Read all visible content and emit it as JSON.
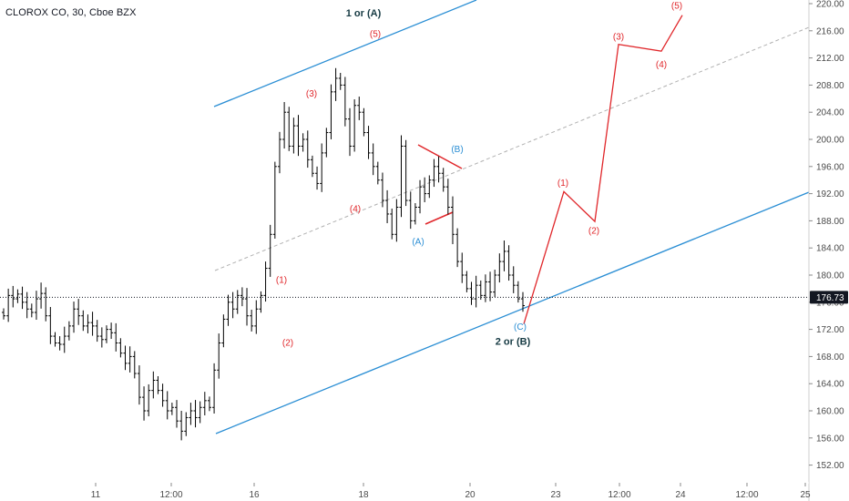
{
  "header": {
    "title": "CLOROX CO, 30, Cboe BZX"
  },
  "colors": {
    "channel": "#2a8ed4",
    "projection": "#e0262a",
    "bars": "#000000",
    "midline": "#b0b0b0",
    "last_price_tag": "#131722"
  },
  "chart_data": {
    "type": "ohlc",
    "symbol": "CLOROX CO",
    "interval": "30",
    "exchange": "Cboe BZX",
    "y_ticks": [
      "220.00",
      "216.00",
      "212.00",
      "208.00",
      "204.00",
      "200.00",
      "196.00",
      "192.00",
      "188.00",
      "184.00",
      "180.00",
      "176.00",
      "172.00",
      "168.00",
      "164.00",
      "160.00",
      "156.00",
      "152.00"
    ],
    "x_ticks": [
      "11",
      "12:00",
      "16",
      "18",
      "20",
      "23",
      "12:00",
      "24",
      "12:00",
      "25"
    ],
    "ylim": [
      150,
      220
    ],
    "last_price": "176.73",
    "grid": false,
    "wave_labels": [
      {
        "text": "1 or (A)",
        "price": 218.6,
        "style": "dark"
      },
      {
        "text": "(5)",
        "price": 215.6,
        "style": "red"
      },
      {
        "text": "(3)",
        "price": 206.8,
        "style": "red"
      },
      {
        "text": "(4)",
        "price": 189.8,
        "style": "red"
      },
      {
        "text": "(1)",
        "price": 179.3,
        "style": "red"
      },
      {
        "text": "(2)",
        "price": 170.1,
        "style": "red"
      },
      {
        "text": "(B)",
        "price": 198.6,
        "style": "blue"
      },
      {
        "text": "(A)",
        "price": 185.0,
        "style": "blue"
      },
      {
        "text": "(C)",
        "price": 172.4,
        "style": "blue"
      },
      {
        "text": "2 or (B)",
        "price": 170.2,
        "style": "dark"
      },
      {
        "text": "(1)",
        "price": 193.6,
        "style": "red"
      },
      {
        "text": "(2)",
        "price": 186.6,
        "style": "red"
      },
      {
        "text": "(3)",
        "price": 215.2,
        "style": "red"
      },
      {
        "text": "(4)",
        "price": 211.1,
        "style": "red"
      },
      {
        "text": "(5)",
        "price": 219.7,
        "style": "red"
      }
    ],
    "projection_path_prices": [
      172.8,
      192.3,
      187.9,
      214.0,
      213.0,
      218.3
    ],
    "price_series": [
      174,
      177,
      176.5,
      177.2,
      176,
      175,
      174.5,
      176.5,
      177.3,
      174,
      171,
      170,
      169.8,
      171,
      172.5,
      175,
      174,
      172.5,
      173,
      172.5,
      171,
      170.5,
      172,
      171.5,
      170,
      168.5,
      167,
      168,
      165.5,
      162,
      160,
      163,
      164.5,
      163,
      161.5,
      160,
      160.5,
      158.5,
      157,
      159,
      160,
      159,
      160.5,
      161.5,
      160.5,
      166,
      170,
      173.5,
      176,
      175,
      177,
      176.5,
      174,
      172.5,
      175,
      177,
      181,
      186,
      196,
      200,
      204,
      199,
      202,
      199,
      200,
      197,
      195,
      193.5,
      198,
      201,
      207,
      209,
      208,
      203,
      199,
      205,
      204,
      201,
      198,
      196,
      194,
      191,
      189,
      186,
      190,
      199,
      191,
      188,
      190,
      193,
      192,
      194,
      196,
      195,
      193,
      190,
      186,
      182,
      180,
      178,
      176.5,
      178.5,
      177,
      179,
      177.5,
      180,
      182,
      183.5,
      180,
      178.5,
      176.5,
      175.5
    ]
  }
}
